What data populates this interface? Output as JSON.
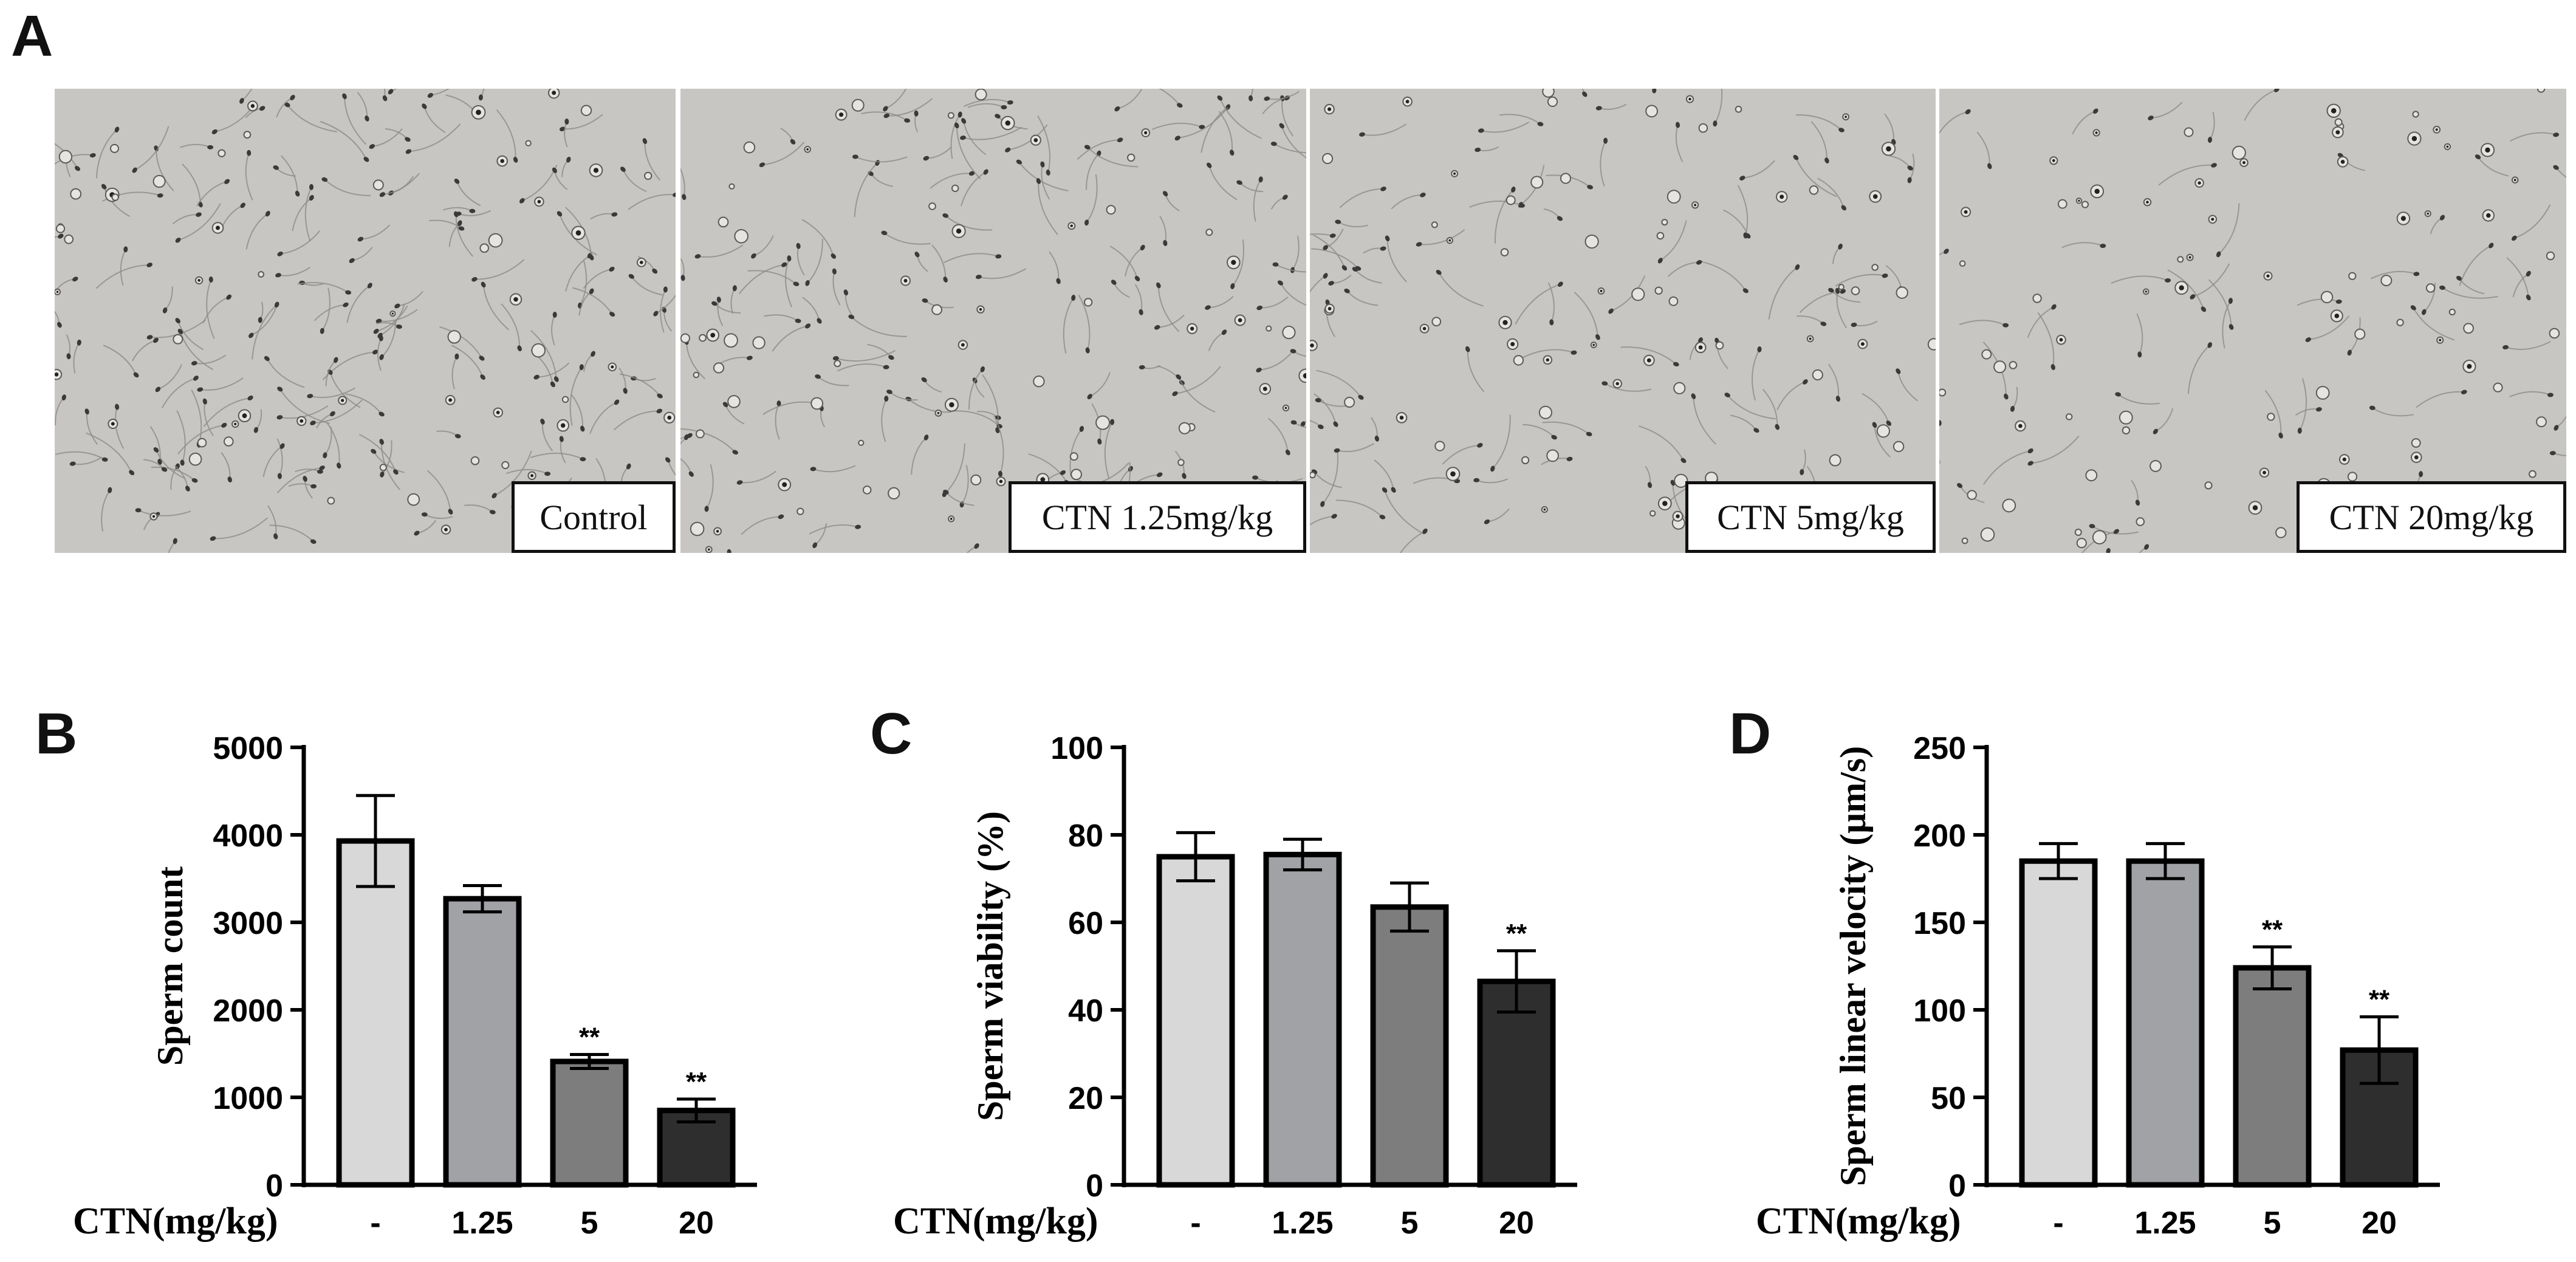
{
  "panel_letters": {
    "a": "A",
    "b": "B",
    "c": "C",
    "d": "D"
  },
  "micrographs": [
    {
      "label": "Control",
      "density": 1.0
    },
    {
      "label": "CTN 1.25mg/kg",
      "density": 0.8
    },
    {
      "label": "CTN 5mg/kg",
      "density": 0.55
    },
    {
      "label": "CTN 20mg/kg",
      "density": 0.35
    }
  ],
  "colors": {
    "bar_fills": [
      "#d8d8d8",
      "#a1a2a6",
      "#7d7d7d",
      "#2e2e2e"
    ],
    "outline": "#000000"
  },
  "chart_data": [
    {
      "type": "bar",
      "panel": "B",
      "categories": [
        "-",
        "1.25",
        "5",
        "20"
      ],
      "values": [
        3930,
        3270,
        1410,
        850
      ],
      "errors": [
        520,
        150,
        80,
        130
      ],
      "significance": [
        "",
        "",
        "**",
        "**"
      ],
      "xlabel": "CTN(mg/kg)",
      "ylabel": "Sperm count",
      "ylim": [
        0,
        5000
      ],
      "yticks": [
        0,
        1000,
        2000,
        3000,
        4000,
        5000
      ]
    },
    {
      "type": "bar",
      "panel": "C",
      "categories": [
        "-",
        "1.25",
        "5",
        "20"
      ],
      "values": [
        75,
        75.5,
        63.5,
        46.5
      ],
      "errors": [
        5.5,
        3.5,
        5.5,
        7
      ],
      "significance": [
        "",
        "",
        "",
        "**"
      ],
      "xlabel": "CTN(mg/kg)",
      "ylabel": "Sperm viability (%)",
      "ylim": [
        0,
        100
      ],
      "yticks": [
        0,
        20,
        40,
        60,
        80,
        100
      ]
    },
    {
      "type": "bar",
      "panel": "D",
      "categories": [
        "-",
        "1.25",
        "5",
        "20"
      ],
      "values": [
        185,
        185,
        124,
        77
      ],
      "errors": [
        10,
        10,
        12,
        19
      ],
      "significance": [
        "",
        "",
        "**",
        "**"
      ],
      "xlabel": "CTN(mg/kg)",
      "ylabel": "Sperm linear velocity (μm/s)",
      "ylim": [
        0,
        250
      ],
      "yticks": [
        0,
        50,
        100,
        150,
        200,
        250
      ]
    }
  ]
}
